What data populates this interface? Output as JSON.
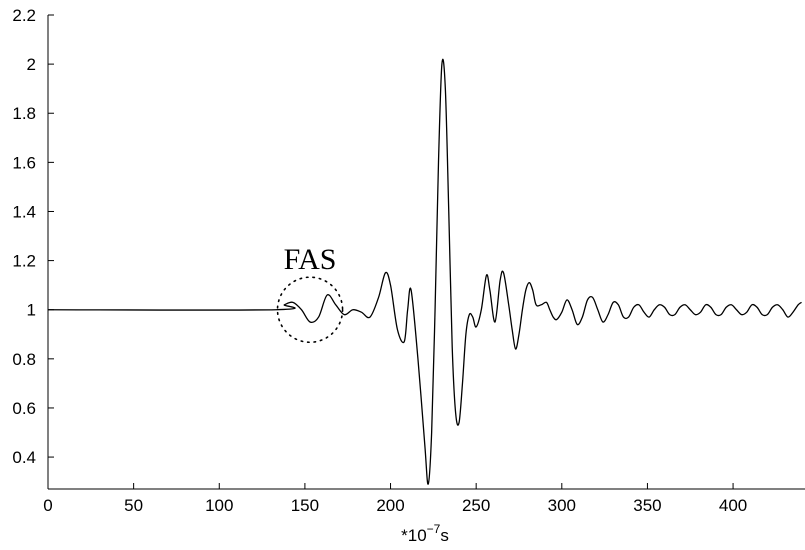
{
  "chart_data": {
    "type": "line",
    "title": "",
    "xlabel": "*10",
    "xlabel_exponent": "−7",
    "xlabel_unit": "s",
    "ylabel": "",
    "xlim": [
      0,
      442
    ],
    "ylim": [
      0.27,
      2.2
    ],
    "xticks": [
      0,
      50,
      100,
      150,
      200,
      250,
      300,
      350,
      400
    ],
    "yticks": [
      0.4,
      0.6,
      0.8,
      1,
      1.2,
      1.4,
      1.6,
      1.8,
      2,
      2.2
    ],
    "ytick_labels": [
      "0.4",
      "0.6",
      "0.8",
      "1",
      "1.2",
      "1.4",
      "1.6",
      "1.8",
      "2",
      "2.2"
    ],
    "grid": false,
    "color": "#000000",
    "series": [
      {
        "x": [
          0,
          133,
          138,
          143,
          148,
          153,
          158,
          163,
          168,
          173,
          178,
          183,
          188,
          193,
          197,
          200,
          204,
          208,
          210,
          212,
          216,
          220,
          222,
          224,
          226,
          228,
          230,
          232,
          234,
          236,
          238,
          240,
          242,
          244,
          246,
          248,
          250,
          253,
          256,
          258,
          261,
          264,
          266,
          269,
          271,
          273,
          275,
          277,
          279,
          281,
          283,
          285,
          288,
          291,
          293,
          295,
          297,
          300,
          303,
          306,
          309,
          312,
          315,
          318,
          321,
          324,
          327,
          330,
          333,
          336,
          339,
          342,
          345,
          348,
          351,
          354,
          357,
          360,
          363,
          366,
          369,
          372,
          375,
          378,
          381,
          384,
          387,
          390,
          393,
          396,
          399,
          402,
          405,
          408,
          411,
          414,
          417,
          420,
          423,
          426,
          429,
          432,
          435,
          438,
          440
        ],
        "y": [
          1.0,
          1.0,
          1.02,
          1.03,
          1.0,
          0.95,
          0.97,
          1.06,
          1.02,
          0.98,
          1.0,
          0.99,
          0.97,
          1.05,
          1.15,
          1.1,
          0.92,
          0.87,
          1.0,
          1.08,
          0.8,
          0.45,
          0.29,
          0.5,
          1.0,
          1.6,
          2.0,
          1.9,
          1.4,
          0.85,
          0.58,
          0.54,
          0.7,
          0.9,
          0.98,
          0.97,
          0.93,
          1.0,
          1.14,
          1.08,
          0.95,
          1.12,
          1.15,
          1.02,
          0.92,
          0.84,
          0.9,
          1.0,
          1.08,
          1.11,
          1.08,
          1.02,
          1.02,
          1.03,
          1.0,
          0.97,
          0.96,
          0.99,
          1.04,
          1.0,
          0.94,
          0.97,
          1.04,
          1.05,
          1.0,
          0.95,
          0.98,
          1.03,
          1.02,
          0.97,
          0.97,
          1.01,
          1.02,
          0.99,
          0.97,
          1.0,
          1.02,
          1.01,
          0.98,
          0.98,
          1.01,
          1.02,
          1.0,
          0.98,
          0.99,
          1.02,
          1.01,
          0.98,
          0.98,
          1.01,
          1.02,
          1.0,
          0.98,
          0.99,
          1.02,
          1.01,
          0.98,
          0.98,
          1.01,
          1.02,
          1.0,
          0.97,
          0.99,
          1.02,
          1.03
        ]
      }
    ],
    "annotations": [
      {
        "text": "FAS",
        "x": 153,
        "y": 1.0,
        "radius": 19
      }
    ]
  }
}
